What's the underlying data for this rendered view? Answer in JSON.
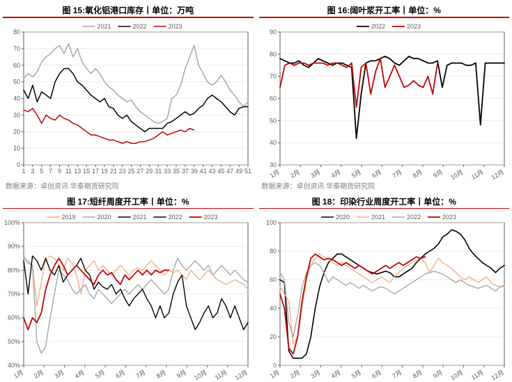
{
  "colors": {
    "axis": "#595959",
    "grid": "#d9d9d9",
    "text": "#000000",
    "red": "#c00000",
    "black": "#000000",
    "gray": "#a6a6a6",
    "pink": "#f4b183",
    "white": "#ffffff"
  },
  "fonts": {
    "title_size": 12,
    "title_weight": "bold",
    "axis_size": 9,
    "legend_size": 9
  },
  "source_label": "数据来源：",
  "source_text": "卓创资讯 华泰期货研究院",
  "charts": [
    {
      "id": "c15",
      "title": "图 15:氧化铝港口库存丨单位：万吨",
      "type": "line",
      "ylim": [
        0,
        80
      ],
      "ytick_step": 10,
      "xlim": [
        1,
        51
      ],
      "xtick_label_step": 2,
      "xlabels_numeric": true,
      "legend_pos": "top-center",
      "series": [
        {
          "name": "2021",
          "color_key": "gray",
          "width": 1.5,
          "y": [
            52,
            55,
            53,
            56,
            62,
            65,
            67,
            70,
            72,
            67,
            73,
            65,
            70,
            62,
            58,
            55,
            58,
            55,
            50,
            47,
            45,
            42,
            40,
            38,
            39,
            35,
            32,
            30,
            28,
            26,
            25,
            26,
            28,
            40,
            42,
            48,
            58,
            65,
            72,
            60,
            55,
            50,
            48,
            50,
            54,
            50,
            45,
            42,
            38,
            35,
            38
          ]
        },
        {
          "name": "2022",
          "color_key": "black",
          "width": 1.5,
          "y": [
            45,
            40,
            48,
            38,
            44,
            42,
            40,
            50,
            55,
            58,
            58,
            55,
            50,
            48,
            45,
            42,
            40,
            38,
            40,
            35,
            34,
            30,
            28,
            30,
            26,
            24,
            22,
            20,
            22,
            22,
            22,
            22,
            25,
            26,
            28,
            30,
            32,
            30,
            31,
            34,
            36,
            40,
            42,
            40,
            38,
            35,
            32,
            30,
            34,
            35,
            35
          ]
        },
        {
          "name": "2023",
          "color_key": "red",
          "width": 1.5,
          "y": [
            33,
            32,
            34,
            30,
            25,
            30,
            28,
            27,
            30,
            28,
            27,
            25,
            24,
            22,
            20,
            18,
            18,
            17,
            16,
            15,
            15,
            14,
            13,
            14,
            13,
            13,
            14,
            14,
            15,
            16,
            18,
            20,
            18,
            19,
            20,
            21,
            20,
            22,
            21,
            null,
            null,
            null,
            null,
            null,
            null,
            null,
            null,
            null,
            null,
            null,
            null
          ]
        }
      ]
    },
    {
      "id": "c16",
      "title": "图 16:阔叶浆开工率丨单位：%",
      "type": "line",
      "ylim": [
        30,
        90
      ],
      "ytick_step": 10,
      "xlabels": [
        "1月",
        "2月",
        "3月",
        "4月",
        "5月",
        "6月",
        "7月",
        "8月",
        "9月",
        "10月",
        "11月",
        "12月"
      ],
      "legend_pos": "top-center",
      "series": [
        {
          "name": "2022",
          "color_key": "black",
          "width": 1.8,
          "y": [
            78,
            77,
            76,
            76,
            77,
            75,
            74,
            76,
            78,
            77,
            76,
            75,
            76,
            76,
            75,
            74,
            42,
            62,
            76,
            77,
            77,
            78,
            79,
            78,
            76,
            75,
            77,
            79,
            78,
            78,
            77,
            76,
            76,
            77,
            65,
            75,
            76,
            76,
            76,
            75,
            75,
            76,
            48,
            76,
            76,
            76,
            76,
            76
          ]
        },
        {
          "name": "2023",
          "color_key": "red",
          "width": 1.8,
          "y": [
            65,
            75,
            76,
            75,
            76,
            76,
            75,
            76,
            76,
            76,
            75,
            76,
            76,
            75,
            74,
            76,
            56,
            74,
            76,
            62,
            72,
            78,
            65,
            70,
            75,
            70,
            65,
            66,
            68,
            66,
            65,
            70,
            62,
            76,
            null,
            null,
            null,
            null,
            null,
            null,
            null,
            null,
            null,
            null,
            null,
            null,
            null,
            null
          ]
        }
      ]
    },
    {
      "id": "c17",
      "title": "图 17:短纤周度开工率丨单位：%",
      "type": "line",
      "ylim": [
        40,
        100
      ],
      "ytick_step": 10,
      "ytick_suffix": "%",
      "xlabels": [
        "1月",
        "2月",
        "3月",
        "4月",
        "5月",
        "6月",
        "7月",
        "8月",
        "9月",
        "10月",
        "11月",
        "12月"
      ],
      "legend_pos": "top-center",
      "series": [
        {
          "name": "2019",
          "color_key": "pink",
          "width": 1.4,
          "y": [
            85,
            84,
            82,
            65,
            75,
            85,
            86,
            85,
            82,
            80,
            85,
            83,
            78,
            70,
            80,
            82,
            84,
            80,
            82,
            80,
            78,
            80,
            82,
            80,
            78,
            80,
            81,
            80,
            82,
            84,
            82,
            80,
            78,
            80,
            79,
            80,
            78,
            76,
            80,
            78,
            76,
            78,
            80,
            78,
            76,
            75,
            74,
            75,
            76,
            75,
            74,
            72
          ]
        },
        {
          "name": "2020",
          "color_key": "gray",
          "width": 1.4,
          "y": [
            86,
            83,
            82,
            50,
            45,
            48,
            60,
            70,
            80,
            78,
            76,
            72,
            70,
            72,
            74,
            70,
            68,
            72,
            70,
            68,
            66,
            68,
            70,
            72,
            70,
            72,
            74,
            72,
            74,
            76,
            74,
            72,
            70,
            72,
            80,
            85,
            82,
            80,
            82,
            84,
            82,
            80,
            82,
            78,
            80,
            82,
            80,
            78,
            80,
            78,
            76,
            75
          ]
        },
        {
          "name": "2021",
          "color_key": "black",
          "width": 1.4,
          "y": [
            84,
            70,
            86,
            84,
            80,
            85,
            80,
            78,
            82,
            75,
            78,
            80,
            82,
            85,
            80,
            78,
            72,
            75,
            73,
            72,
            74,
            70,
            72,
            68,
            65,
            68,
            70,
            72,
            68,
            65,
            60,
            65,
            60,
            62,
            70,
            75,
            78,
            65,
            60,
            55,
            58,
            62,
            65,
            60,
            62,
            68,
            65,
            60,
            65,
            60,
            55,
            58
          ]
        },
        {
          "name": "2022",
          "color_key": "black",
          "width": 0,
          "y": []
        },
        {
          "name": "2023",
          "color_key": "red",
          "width": 1.8,
          "y": [
            60,
            55,
            60,
            58,
            62,
            72,
            78,
            82,
            85,
            82,
            78,
            80,
            82,
            80,
            78,
            76,
            74,
            78,
            80,
            78,
            79,
            76,
            74,
            78,
            76,
            78,
            80,
            78,
            80,
            78,
            80,
            79,
            80,
            80,
            null,
            null,
            null,
            null,
            null,
            null,
            null,
            null,
            null,
            null,
            null,
            null,
            null,
            null,
            null,
            null,
            null,
            null
          ]
        }
      ]
    },
    {
      "id": "c18",
      "title": "图 18：印染行业周度开工率丨单位：%",
      "type": "line",
      "ylim": [
        0,
        100
      ],
      "ytick_step": 20,
      "xlabels": [
        "1月",
        "2月",
        "3月",
        "4月",
        "5月",
        "6月",
        "7月",
        "8月",
        "9月",
        "10月",
        "11月",
        "12月"
      ],
      "legend_pos": "top-center",
      "series": [
        {
          "name": "2020",
          "color_key": "black",
          "width": 1.6,
          "y": [
            60,
            58,
            10,
            5,
            5,
            5,
            8,
            20,
            40,
            55,
            65,
            72,
            75,
            78,
            78,
            76,
            74,
            72,
            70,
            68,
            66,
            65,
            64,
            65,
            66,
            65,
            62,
            62,
            64,
            66,
            68,
            72,
            75,
            78,
            80,
            82,
            85,
            90,
            92,
            95,
            94,
            92,
            88,
            82,
            78,
            75,
            72,
            70,
            68,
            65,
            68,
            70
          ]
        },
        {
          "name": "2021",
          "color_key": "pink",
          "width": 1.4,
          "y": [
            55,
            50,
            45,
            15,
            20,
            40,
            60,
            70,
            75,
            78,
            76,
            74,
            72,
            70,
            72,
            70,
            68,
            66,
            64,
            62,
            60,
            58,
            60,
            62,
            60,
            58,
            62,
            65,
            68,
            70,
            72,
            74,
            75,
            72,
            65,
            70,
            75,
            72,
            70,
            68,
            65,
            62,
            60,
            62,
            60,
            58,
            60,
            62,
            58,
            56,
            55,
            55
          ]
        },
        {
          "name": "2022",
          "color_key": "gray",
          "width": 1.4,
          "y": [
            65,
            60,
            30,
            20,
            35,
            55,
            65,
            70,
            72,
            70,
            65,
            58,
            62,
            60,
            58,
            56,
            58,
            56,
            54,
            56,
            54,
            52,
            54,
            55,
            54,
            52,
            50,
            52,
            54,
            56,
            58,
            60,
            62,
            64,
            65,
            66,
            65,
            64,
            62,
            60,
            58,
            60,
            58,
            56,
            55,
            54,
            55,
            56,
            54,
            52,
            55,
            56
          ]
        },
        {
          "name": "2023",
          "color_key": "red",
          "width": 1.8,
          "y": [
            50,
            40,
            12,
            8,
            20,
            45,
            62,
            75,
            78,
            76,
            74,
            75,
            74,
            72,
            70,
            72,
            70,
            68,
            70,
            68,
            66,
            64,
            66,
            68,
            70,
            68,
            70,
            72,
            70,
            72,
            74,
            76,
            75,
            76,
            null,
            null,
            null,
            null,
            null,
            null,
            null,
            null,
            null,
            null,
            null,
            null,
            null,
            null,
            null,
            null,
            null,
            null
          ]
        }
      ]
    }
  ]
}
